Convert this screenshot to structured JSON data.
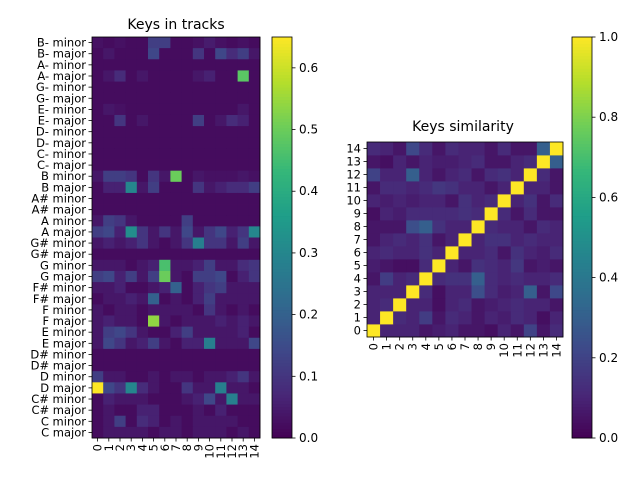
{
  "colors": {
    "viridis": [
      "#440154",
      "#482878",
      "#3e4989",
      "#31688e",
      "#26828e",
      "#1f9e89",
      "#35b779",
      "#6ece58",
      "#b5de2b",
      "#fde725"
    ]
  },
  "chart_data": [
    {
      "type": "heatmap",
      "title": "Keys in tracks",
      "colormap": "viridis",
      "vmin": 0,
      "vmax": 0.65,
      "colorbar_ticks": [
        "0.0",
        "0.1",
        "0.2",
        "0.3",
        "0.4",
        "0.5",
        "0.6"
      ],
      "x_ticks": [
        "0",
        "1",
        "2",
        "3",
        "4",
        "5",
        "6",
        "7",
        "8",
        "9",
        "10",
        "11",
        "12",
        "13",
        "14"
      ],
      "y_ticks_top_to_bottom": [
        "B- minor",
        "B- major",
        "A- minor",
        "A- major",
        "G- minor",
        "G- major",
        "E- minor",
        "E- major",
        "D- minor",
        "D- major",
        "C- minor",
        "C- major",
        "B minor",
        "B major",
        "A# minor",
        "A# major",
        "A minor",
        "A major",
        "G# minor",
        "G# major",
        "G minor",
        "G major",
        "F# minor",
        "F# major",
        "F minor",
        "F major",
        "E minor",
        "E major",
        "D# minor",
        "D# major",
        "D minor",
        "D major",
        "C# minor",
        "C# major",
        "C minor",
        "C major"
      ],
      "values": [
        [
          0.03,
          0.02,
          0.03,
          0.02,
          0.02,
          0.12,
          0.12,
          0.02,
          0.02,
          0.03,
          0.05,
          0.03,
          0.02,
          0.03,
          0.02
        ],
        [
          0.02,
          0.04,
          0.02,
          0.02,
          0.02,
          0.14,
          0.02,
          0.02,
          0.02,
          0.1,
          0.02,
          0.14,
          0.08,
          0.12,
          0.04
        ],
        [
          0.02,
          0.02,
          0.02,
          0.02,
          0.02,
          0.02,
          0.02,
          0.02,
          0.02,
          0.02,
          0.02,
          0.02,
          0.02,
          0.02,
          0.02
        ],
        [
          0.02,
          0.04,
          0.08,
          0.02,
          0.04,
          0.02,
          0.02,
          0.02,
          0.02,
          0.04,
          0.06,
          0.02,
          0.02,
          0.48,
          0.02
        ],
        [
          0.02,
          0.02,
          0.02,
          0.02,
          0.02,
          0.02,
          0.02,
          0.02,
          0.02,
          0.02,
          0.02,
          0.02,
          0.02,
          0.02,
          0.02
        ],
        [
          0.02,
          0.02,
          0.02,
          0.02,
          0.02,
          0.02,
          0.02,
          0.02,
          0.02,
          0.02,
          0.02,
          0.02,
          0.02,
          0.02,
          0.02
        ],
        [
          0.02,
          0.04,
          0.03,
          0.02,
          0.02,
          0.02,
          0.02,
          0.02,
          0.02,
          0.02,
          0.02,
          0.02,
          0.02,
          0.04,
          0.02
        ],
        [
          0.02,
          0.02,
          0.1,
          0.02,
          0.04,
          0.02,
          0.02,
          0.02,
          0.02,
          0.12,
          0.02,
          0.04,
          0.08,
          0.06,
          0.02
        ],
        [
          0.02,
          0.02,
          0.02,
          0.02,
          0.02,
          0.02,
          0.02,
          0.02,
          0.02,
          0.02,
          0.02,
          0.02,
          0.02,
          0.02,
          0.02
        ],
        [
          0.02,
          0.02,
          0.02,
          0.02,
          0.02,
          0.02,
          0.02,
          0.02,
          0.02,
          0.02,
          0.02,
          0.02,
          0.02,
          0.02,
          0.02
        ],
        [
          0.02,
          0.02,
          0.02,
          0.02,
          0.02,
          0.02,
          0.02,
          0.02,
          0.02,
          0.02,
          0.02,
          0.02,
          0.02,
          0.02,
          0.02
        ],
        [
          0.02,
          0.02,
          0.02,
          0.02,
          0.02,
          0.02,
          0.02,
          0.02,
          0.02,
          0.02,
          0.02,
          0.02,
          0.02,
          0.02,
          0.02
        ],
        [
          0.04,
          0.12,
          0.12,
          0.1,
          0.02,
          0.1,
          0.04,
          0.5,
          0.02,
          0.04,
          0.03,
          0.03,
          0.03,
          0.04,
          0.03
        ],
        [
          0.02,
          0.06,
          0.06,
          0.3,
          0.04,
          0.12,
          0.02,
          0.02,
          0.02,
          0.1,
          0.04,
          0.06,
          0.08,
          0.08,
          0.12
        ],
        [
          0.02,
          0.02,
          0.02,
          0.02,
          0.02,
          0.02,
          0.02,
          0.02,
          0.02,
          0.02,
          0.02,
          0.02,
          0.02,
          0.02,
          0.02
        ],
        [
          0.02,
          0.02,
          0.02,
          0.02,
          0.02,
          0.02,
          0.02,
          0.02,
          0.02,
          0.02,
          0.02,
          0.02,
          0.02,
          0.02,
          0.02
        ],
        [
          0.04,
          0.12,
          0.1,
          0.04,
          0.02,
          0.02,
          0.02,
          0.02,
          0.12,
          0.02,
          0.02,
          0.02,
          0.02,
          0.02,
          0.02
        ],
        [
          0.12,
          0.14,
          0.06,
          0.32,
          0.1,
          0.04,
          0.1,
          0.04,
          0.14,
          0.04,
          0.1,
          0.14,
          0.06,
          0.1,
          0.3
        ],
        [
          0.04,
          0.06,
          0.04,
          0.06,
          0.1,
          0.04,
          0.02,
          0.04,
          0.1,
          0.28,
          0.1,
          0.1,
          0.04,
          0.12,
          0.04
        ],
        [
          0.02,
          0.02,
          0.02,
          0.02,
          0.02,
          0.02,
          0.02,
          0.02,
          0.02,
          0.02,
          0.02,
          0.02,
          0.02,
          0.02,
          0.02
        ],
        [
          0.04,
          0.04,
          0.04,
          0.02,
          0.04,
          0.06,
          0.46,
          0.04,
          0.04,
          0.06,
          0.12,
          0.04,
          0.04,
          0.08,
          0.1
        ],
        [
          0.12,
          0.14,
          0.06,
          0.12,
          0.04,
          0.12,
          0.5,
          0.04,
          0.02,
          0.12,
          0.12,
          0.14,
          0.02,
          0.06,
          0.1
        ],
        [
          0.04,
          0.04,
          0.06,
          0.02,
          0.02,
          0.04,
          0.06,
          0.2,
          0.02,
          0.06,
          0.1,
          0.12,
          0.04,
          0.04,
          0.04
        ],
        [
          0.02,
          0.04,
          0.04,
          0.06,
          0.04,
          0.2,
          0.02,
          0.04,
          0.02,
          0.06,
          0.12,
          0.04,
          0.04,
          0.04,
          0.04
        ],
        [
          0.04,
          0.02,
          0.04,
          0.04,
          0.02,
          0.04,
          0.04,
          0.04,
          0.04,
          0.02,
          0.1,
          0.04,
          0.02,
          0.04,
          0.02
        ],
        [
          0.04,
          0.06,
          0.04,
          0.04,
          0.02,
          0.54,
          0.04,
          0.02,
          0.04,
          0.04,
          0.04,
          0.06,
          0.04,
          0.06,
          0.04
        ],
        [
          0.04,
          0.12,
          0.14,
          0.1,
          0.04,
          0.02,
          0.02,
          0.06,
          0.12,
          0.04,
          0.04,
          0.04,
          0.04,
          0.06,
          0.02
        ],
        [
          0.04,
          0.14,
          0.1,
          0.04,
          0.06,
          0.12,
          0.04,
          0.02,
          0.06,
          0.06,
          0.28,
          0.04,
          0.04,
          0.04,
          0.14
        ],
        [
          0.02,
          0.02,
          0.02,
          0.02,
          0.02,
          0.02,
          0.02,
          0.02,
          0.02,
          0.02,
          0.02,
          0.02,
          0.02,
          0.02,
          0.02
        ],
        [
          0.02,
          0.02,
          0.02,
          0.02,
          0.02,
          0.02,
          0.02,
          0.02,
          0.02,
          0.02,
          0.02,
          0.02,
          0.02,
          0.02,
          0.02
        ],
        [
          0.12,
          0.04,
          0.04,
          0.02,
          0.02,
          0.04,
          0.02,
          0.04,
          0.04,
          0.02,
          0.04,
          0.04,
          0.06,
          0.1,
          0.04
        ],
        [
          0.65,
          0.14,
          0.1,
          0.3,
          0.08,
          0.04,
          0.02,
          0.02,
          0.1,
          0.04,
          0.04,
          0.28,
          0.04,
          0.04,
          0.02
        ],
        [
          0.02,
          0.06,
          0.04,
          0.04,
          0.04,
          0.02,
          0.02,
          0.02,
          0.04,
          0.06,
          0.14,
          0.04,
          0.28,
          0.04,
          0.04
        ],
        [
          0.02,
          0.04,
          0.02,
          0.02,
          0.06,
          0.06,
          0.02,
          0.02,
          0.02,
          0.04,
          0.02,
          0.06,
          0.02,
          0.02,
          0.02
        ],
        [
          0.02,
          0.04,
          0.12,
          0.02,
          0.08,
          0.06,
          0.02,
          0.04,
          0.02,
          0.04,
          0.04,
          0.04,
          0.04,
          0.02,
          0.02
        ],
        [
          0.02,
          0.04,
          0.04,
          0.04,
          0.04,
          0.02,
          0.04,
          0.04,
          0.02,
          0.04,
          0.04,
          0.04,
          0.02,
          0.04,
          0.02
        ]
      ]
    },
    {
      "type": "heatmap",
      "title": "Keys similarity",
      "colormap": "viridis",
      "vmin": 0,
      "vmax": 1,
      "colorbar_ticks": [
        "0.0",
        "0.2",
        "0.4",
        "0.6",
        "0.8",
        "1.0"
      ],
      "x_ticks": [
        "0",
        "1",
        "2",
        "3",
        "4",
        "5",
        "6",
        "7",
        "8",
        "9",
        "10",
        "11",
        "12",
        "13",
        "14"
      ],
      "y_ticks": [
        "0",
        "1",
        "2",
        "3",
        "4",
        "5",
        "6",
        "7",
        "8",
        "9",
        "10",
        "11",
        "12",
        "13",
        "14"
      ],
      "values": [
        [
          1.0,
          0.1,
          0.1,
          0.1,
          0.06,
          0.08,
          0.1,
          0.06,
          0.06,
          0.04,
          0.1,
          0.06,
          0.2,
          0.06,
          0.12
        ],
        [
          0.1,
          1.0,
          0.12,
          0.1,
          0.18,
          0.06,
          0.12,
          0.1,
          0.06,
          0.1,
          0.08,
          0.12,
          0.1,
          0.04,
          0.1
        ],
        [
          0.1,
          0.12,
          1.0,
          0.1,
          0.1,
          0.04,
          0.1,
          0.12,
          0.06,
          0.08,
          0.1,
          0.12,
          0.1,
          0.1,
          0.06
        ],
        [
          0.1,
          0.1,
          0.1,
          1.0,
          0.12,
          0.04,
          0.1,
          0.1,
          0.24,
          0.12,
          0.08,
          0.1,
          0.3,
          0.06,
          0.22
        ],
        [
          0.06,
          0.18,
          0.1,
          0.12,
          1.0,
          0.12,
          0.14,
          0.14,
          0.3,
          0.12,
          0.1,
          0.12,
          0.1,
          0.1,
          0.12
        ],
        [
          0.08,
          0.06,
          0.04,
          0.04,
          0.12,
          1.0,
          0.1,
          0.06,
          0.14,
          0.12,
          0.1,
          0.16,
          0.06,
          0.08,
          0.06
        ],
        [
          0.1,
          0.12,
          0.1,
          0.1,
          0.14,
          0.1,
          1.0,
          0.1,
          0.1,
          0.12,
          0.06,
          0.14,
          0.1,
          0.08,
          0.12
        ],
        [
          0.06,
          0.1,
          0.12,
          0.1,
          0.14,
          0.06,
          0.1,
          1.0,
          0.1,
          0.14,
          0.14,
          0.1,
          0.12,
          0.1,
          0.1
        ],
        [
          0.06,
          0.06,
          0.06,
          0.24,
          0.3,
          0.14,
          0.1,
          0.1,
          1.0,
          0.12,
          0.1,
          0.1,
          0.06,
          0.12,
          0.1
        ],
        [
          0.04,
          0.1,
          0.08,
          0.12,
          0.12,
          0.12,
          0.12,
          0.14,
          0.12,
          1.0,
          0.12,
          0.06,
          0.12,
          0.06,
          0.06
        ],
        [
          0.1,
          0.08,
          0.1,
          0.08,
          0.1,
          0.1,
          0.06,
          0.14,
          0.1,
          0.12,
          1.0,
          0.1,
          0.14,
          0.06,
          0.12
        ],
        [
          0.06,
          0.12,
          0.12,
          0.1,
          0.12,
          0.16,
          0.14,
          0.1,
          0.1,
          0.06,
          0.1,
          1.0,
          0.1,
          0.1,
          0.06
        ],
        [
          0.2,
          0.1,
          0.1,
          0.3,
          0.1,
          0.06,
          0.1,
          0.12,
          0.06,
          0.12,
          0.14,
          0.1,
          1.0,
          0.12,
          0.06
        ],
        [
          0.06,
          0.04,
          0.1,
          0.06,
          0.1,
          0.08,
          0.08,
          0.1,
          0.12,
          0.06,
          0.06,
          0.1,
          0.12,
          1.0,
          0.3
        ],
        [
          0.12,
          0.1,
          0.06,
          0.22,
          0.12,
          0.06,
          0.12,
          0.1,
          0.1,
          0.06,
          0.12,
          0.06,
          0.06,
          0.3,
          1.0
        ]
      ]
    }
  ]
}
